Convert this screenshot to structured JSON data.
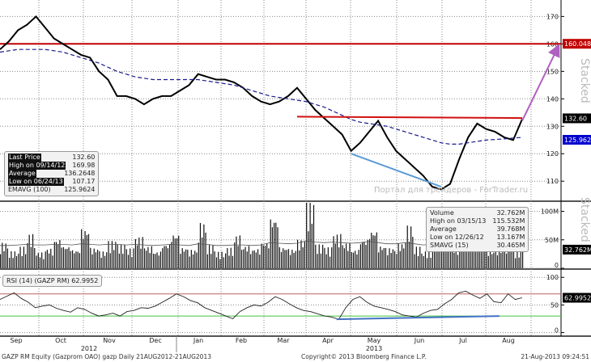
{
  "chart_data": [
    {
      "type": "line",
      "panel": "price",
      "yticks": [
        110,
        120,
        130,
        140,
        150,
        160,
        170
      ],
      "ylim": [
        103,
        176
      ],
      "series": [
        {
          "name": "Last Price",
          "color": "#000000",
          "values": [
            158,
            161,
            165,
            167,
            170,
            166,
            162,
            160,
            158,
            156,
            155,
            150,
            147,
            141,
            141,
            140,
            138,
            140,
            141,
            141,
            143,
            145,
            149,
            148,
            147,
            147,
            146,
            144,
            141,
            139,
            138,
            139,
            141,
            144,
            140,
            136,
            133,
            130,
            127,
            121,
            124,
            128,
            132,
            126,
            121,
            118,
            115,
            112,
            108,
            107,
            109,
            118,
            126,
            131,
            129,
            128,
            126,
            125,
            132.6
          ]
        },
        {
          "name": "EMAVG (100)",
          "color": "#1a1a8c",
          "style": "dashed",
          "values": [
            157,
            157.5,
            158,
            158,
            158,
            158,
            157.5,
            157,
            156,
            155,
            154,
            153,
            151.5,
            150,
            149,
            148,
            147.5,
            147,
            147,
            147,
            147,
            147,
            147,
            146.5,
            146,
            145.5,
            145,
            144,
            143,
            142,
            141,
            140.5,
            140,
            139.5,
            139,
            138,
            137,
            135.5,
            134,
            132.5,
            131.5,
            131,
            130.5,
            130,
            129,
            128,
            127,
            126,
            125,
            124,
            123.5,
            123.5,
            124,
            124.5,
            125,
            125.2,
            125.4,
            125.7,
            125.9624
          ]
        }
      ],
      "hlines": [
        {
          "value": 160.0485,
          "color": "#c00000",
          "label": "160.0485"
        }
      ],
      "annotations": [
        {
          "kind": "resistance",
          "color": "#d01010",
          "from": [
            33,
            133.5
          ],
          "to": [
            58,
            133
          ]
        },
        {
          "kind": "support-trend",
          "color": "#5b9bd5",
          "from": [
            39,
            120
          ],
          "to": [
            49,
            108
          ]
        },
        {
          "kind": "arrow",
          "color": "#b060c0",
          "from": [
            58,
            132
          ],
          "to": [
            62,
            159
          ]
        }
      ],
      "tags": [
        {
          "label": "132.60",
          "bg": "#000000"
        },
        {
          "label": "125.9624",
          "bg": "#0000cc"
        }
      ],
      "legend": {
        "rows": [
          {
            "name": "Last Price",
            "value": "132.60"
          },
          {
            "name": "High on 09/14/12",
            "value": "169.98"
          },
          {
            "name": "Average",
            "value": "136.2648"
          },
          {
            "name": "Low on 06/24/13",
            "value": "107.17"
          },
          {
            "name": "EMAVG (100)",
            "value": "125.9624"
          }
        ]
      }
    },
    {
      "type": "bar",
      "panel": "volume",
      "yticks": [
        "0",
        "50M",
        "100M"
      ],
      "ylim": [
        0,
        115
      ],
      "values": [
        45,
        30,
        38,
        60,
        28,
        35,
        52,
        40,
        33,
        70,
        36,
        30,
        48,
        42,
        35,
        55,
        39,
        30,
        44,
        62,
        37,
        33,
        80,
        41,
        29,
        36,
        58,
        40,
        35,
        47,
        90,
        38,
        34,
        50,
        115.532,
        42,
        37,
        60,
        45,
        33,
        52,
        68,
        40,
        36,
        44,
        75,
        38,
        30,
        55,
        48,
        35,
        42,
        39,
        50,
        31,
        36,
        45,
        30,
        32.762
      ],
      "sma": {
        "name": "SMAVG (15)",
        "values": [
          40,
          40,
          41,
          42,
          41,
          41,
          42,
          42,
          41,
          43,
          42,
          41,
          42,
          42,
          41,
          42,
          41,
          40,
          41,
          42,
          41,
          40,
          43,
          42,
          40,
          40,
          41,
          41,
          40,
          41,
          45,
          44,
          43,
          44,
          48,
          46,
          45,
          46,
          45,
          44,
          45,
          47,
          45,
          43,
          43,
          45,
          43,
          41,
          42,
          42,
          41,
          40,
          39,
          40,
          38,
          36,
          35,
          33,
          30.465
        ]
      },
      "tag": "32.762M",
      "legend": {
        "rows": [
          {
            "name": "Volume",
            "value": "32.762M"
          },
          {
            "name": "High on 03/15/13",
            "value": "115.532M"
          },
          {
            "name": "Average",
            "value": "39.768M"
          },
          {
            "name": "Low on 12/26/12",
            "value": "13.167M"
          },
          {
            "name": "SMAVG (15)",
            "value": "30.465M"
          }
        ]
      }
    },
    {
      "type": "line",
      "panel": "rsi",
      "yticks": [
        0,
        50,
        100
      ],
      "ylim": [
        -5,
        112
      ],
      "values": [
        60,
        66,
        72,
        62,
        55,
        45,
        48,
        50,
        44,
        40,
        37,
        45,
        42,
        35,
        30,
        32,
        35,
        30,
        38,
        40,
        45,
        44,
        48,
        55,
        62,
        70,
        65,
        58,
        54,
        45,
        40,
        35,
        30,
        25,
        38,
        45,
        50,
        48,
        55,
        65,
        60,
        52,
        45,
        40,
        38,
        34,
        30,
        28,
        24,
        45,
        60,
        65,
        55,
        48,
        45,
        42,
        38,
        32,
        30,
        28,
        35,
        40,
        42,
        52,
        60,
        72,
        75,
        68,
        62,
        70,
        56,
        54,
        70,
        60,
        62.9952
      ],
      "levels": [
        {
          "value": 70,
          "color": "#c06060"
        },
        {
          "value": 30,
          "color": "#40c040"
        }
      ],
      "trendline": {
        "color": "#4472c4",
        "from": [
          0.6,
          24
        ],
        "to": [
          0.89,
          30
        ]
      },
      "tag": "62.9952",
      "legend": "RSI (14) (GAZP RM) 62.9952"
    }
  ],
  "x_axis": {
    "months": [
      "Sep",
      "Oct",
      "Nov",
      "Dec",
      "Jan",
      "Feb",
      "Mar",
      "Apr",
      "May",
      "Jun",
      "Jul",
      "Aug"
    ],
    "years": [
      "2012",
      "2013"
    ]
  },
  "watermark": "Портал для трейдеров - ForTrader.ru",
  "stacked_label": "Stacked",
  "footer": {
    "left": "GAZP RM Equity (Gazprom OAO) gazp  Daily 21AUG2012-21AUG2013",
    "center": "Copyright© 2013 Bloomberg Finance L.P.",
    "right": "21-Aug-2013 09:24:51"
  }
}
